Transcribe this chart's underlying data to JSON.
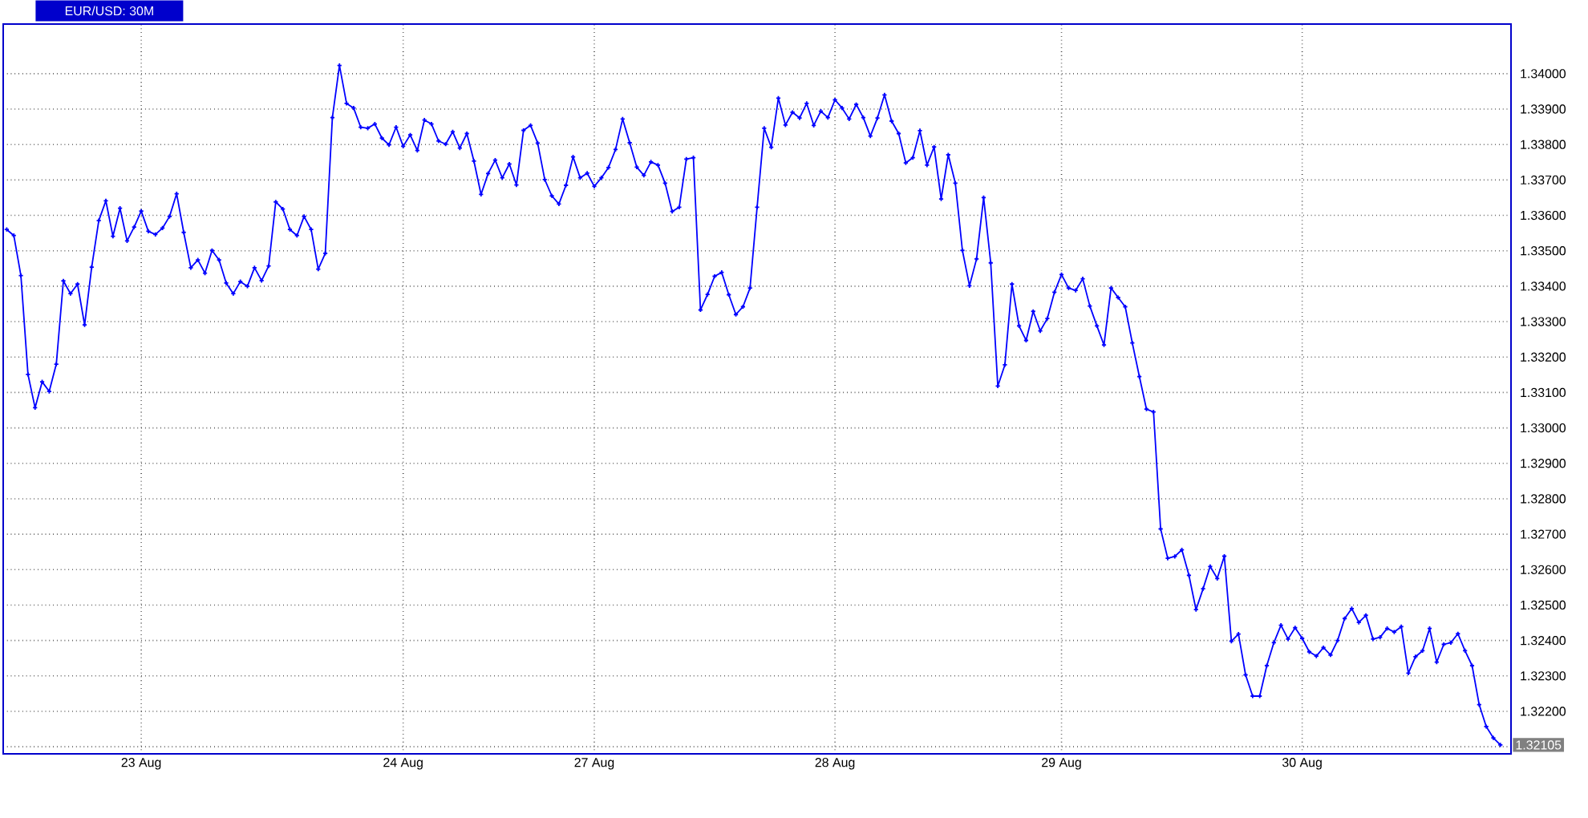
{
  "chart_data": {
    "type": "line",
    "title": "EUR/USD: 30M",
    "color": "#0000ff",
    "marker": "cross",
    "line_style": "solid",
    "grid": true,
    "ylim": [
      1.3208,
      1.3414
    ],
    "yticks": [
      {
        "value": 1.321,
        "label": null
      },
      {
        "value": 1.322,
        "label": "1.32200"
      },
      {
        "value": 1.323,
        "label": "1.32300"
      },
      {
        "value": 1.324,
        "label": "1.32400"
      },
      {
        "value": 1.325,
        "label": "1.32500"
      },
      {
        "value": 1.326,
        "label": "1.32600"
      },
      {
        "value": 1.327,
        "label": "1.32700"
      },
      {
        "value": 1.328,
        "label": "1.32800"
      },
      {
        "value": 1.329,
        "label": "1.32900"
      },
      {
        "value": 1.33,
        "label": "1.33000"
      },
      {
        "value": 1.331,
        "label": "1.33100"
      },
      {
        "value": 1.332,
        "label": "1.33200"
      },
      {
        "value": 1.333,
        "label": "1.33300"
      },
      {
        "value": 1.334,
        "label": "1.33400"
      },
      {
        "value": 1.335,
        "label": "1.33500"
      },
      {
        "value": 1.336,
        "label": "1.33600"
      },
      {
        "value": 1.337,
        "label": "1.33700"
      },
      {
        "value": 1.338,
        "label": "1.33800"
      },
      {
        "value": 1.339,
        "label": "1.33900"
      },
      {
        "value": 1.34,
        "label": "1.34000"
      }
    ],
    "annotations": [
      "1.32105"
    ],
    "categories": [
      null,
      null,
      null,
      null,
      null,
      null,
      null,
      null,
      null,
      null,
      null,
      null,
      null,
      null,
      null,
      null,
      null,
      null,
      null,
      "23 Aug",
      null,
      null,
      null,
      null,
      null,
      null,
      null,
      null,
      null,
      null,
      null,
      null,
      null,
      null,
      null,
      null,
      null,
      null,
      null,
      null,
      null,
      null,
      null,
      null,
      null,
      null,
      null,
      null,
      null,
      null,
      null,
      null,
      null,
      null,
      null,
      null,
      "24 Aug",
      null,
      null,
      null,
      null,
      null,
      null,
      null,
      null,
      null,
      null,
      null,
      null,
      null,
      null,
      null,
      null,
      null,
      null,
      null,
      null,
      null,
      null,
      null,
      null,
      null,
      null,
      "27 Aug",
      null,
      null,
      null,
      null,
      null,
      null,
      null,
      null,
      null,
      null,
      null,
      null,
      null,
      null,
      null,
      null,
      null,
      null,
      null,
      null,
      null,
      null,
      null,
      null,
      null,
      null,
      null,
      null,
      null,
      null,
      null,
      null,
      null,
      "28 Aug",
      null,
      null,
      null,
      null,
      null,
      null,
      null,
      null,
      null,
      null,
      null,
      null,
      null,
      null,
      null,
      null,
      null,
      null,
      null,
      null,
      null,
      null,
      null,
      null,
      null,
      null,
      null,
      null,
      null,
      null,
      null,
      "29 Aug",
      null,
      null,
      null,
      null,
      null,
      null,
      null,
      null,
      null,
      null,
      null,
      null,
      null,
      null,
      null,
      null,
      null,
      null,
      null,
      null,
      null,
      null,
      null,
      null,
      null,
      null,
      null,
      null,
      null,
      null,
      null,
      null,
      null,
      "30 Aug",
      null,
      null,
      null,
      null,
      null,
      null,
      null,
      null,
      null,
      null,
      null,
      null,
      null,
      null,
      null,
      null,
      null,
      null,
      null,
      null,
      null,
      null,
      null,
      null,
      null,
      null,
      null,
      null
    ],
    "values": [
      1.3356,
      1.33543,
      1.3343,
      1.33151,
      1.33057,
      1.3313,
      1.33103,
      1.3318,
      1.33415,
      1.33379,
      1.33406,
      1.33291,
      1.33454,
      1.33585,
      1.33641,
      1.33541,
      1.3362,
      1.33528,
      1.33567,
      1.33612,
      1.33555,
      1.33546,
      1.33564,
      1.33597,
      1.33661,
      1.33552,
      1.33452,
      1.33474,
      1.33437,
      1.33501,
      1.33474,
      1.33409,
      1.33379,
      1.33413,
      1.334,
      1.33452,
      1.33416,
      1.33457,
      1.33638,
      1.33618,
      1.3356,
      1.33543,
      1.33597,
      1.3356,
      1.33448,
      1.33493,
      1.33876,
      1.34023,
      1.33916,
      1.33903,
      1.33849,
      1.33846,
      1.33858,
      1.33818,
      1.33799,
      1.33849,
      1.33795,
      1.33827,
      1.33783,
      1.33869,
      1.33858,
      1.3381,
      1.33801,
      1.33836,
      1.3379,
      1.33831,
      1.33753,
      1.33659,
      1.33718,
      1.33756,
      1.33706,
      1.33745,
      1.33686,
      1.3384,
      1.33854,
      1.33804,
      1.33701,
      1.33655,
      1.33632,
      1.33685,
      1.33765,
      1.33706,
      1.33719,
      1.33682,
      1.33706,
      1.33735,
      1.33786,
      1.33872,
      1.33805,
      1.33736,
      1.33713,
      1.33751,
      1.33742,
      1.33691,
      1.33611,
      1.33623,
      1.33759,
      1.33763,
      1.33333,
      1.33377,
      1.33428,
      1.33439,
      1.33376,
      1.3332,
      1.33342,
      1.33395,
      1.33623,
      1.33846,
      1.33792,
      1.33931,
      1.33855,
      1.33891,
      1.33875,
      1.33916,
      1.33854,
      1.33894,
      1.33876,
      1.33926,
      1.33903,
      1.33872,
      1.33913,
      1.33876,
      1.33824,
      1.33875,
      1.3394,
      1.33866,
      1.33831,
      1.33748,
      1.33763,
      1.33839,
      1.33742,
      1.33793,
      1.33646,
      1.33771,
      1.33691,
      1.33501,
      1.33401,
      1.33477,
      1.3365,
      1.33466,
      1.33118,
      1.33178,
      1.33406,
      1.33288,
      1.33247,
      1.33329,
      1.33274,
      1.33309,
      1.33383,
      1.33433,
      1.33395,
      1.33388,
      1.33421,
      1.33344,
      1.33288,
      1.33234,
      1.33395,
      1.33368,
      1.33342,
      1.3324,
      1.33145,
      1.33053,
      1.33045,
      1.32715,
      1.32632,
      1.32637,
      1.32656,
      1.32584,
      1.32487,
      1.32546,
      1.32609,
      1.32575,
      1.32638,
      1.32398,
      1.32418,
      1.32303,
      1.32243,
      1.32243,
      1.32329,
      1.32394,
      1.32443,
      1.32404,
      1.32436,
      1.32406,
      1.32368,
      1.32356,
      1.3238,
      1.32359,
      1.324,
      1.32462,
      1.3249,
      1.32451,
      1.32471,
      1.32404,
      1.32409,
      1.32434,
      1.32424,
      1.32439,
      1.32308,
      1.32354,
      1.32371,
      1.32434,
      1.32339,
      1.32389,
      1.32394,
      1.32419,
      1.32371,
      1.32329,
      1.32219,
      1.32157,
      1.32125,
      1.32105
    ]
  }
}
